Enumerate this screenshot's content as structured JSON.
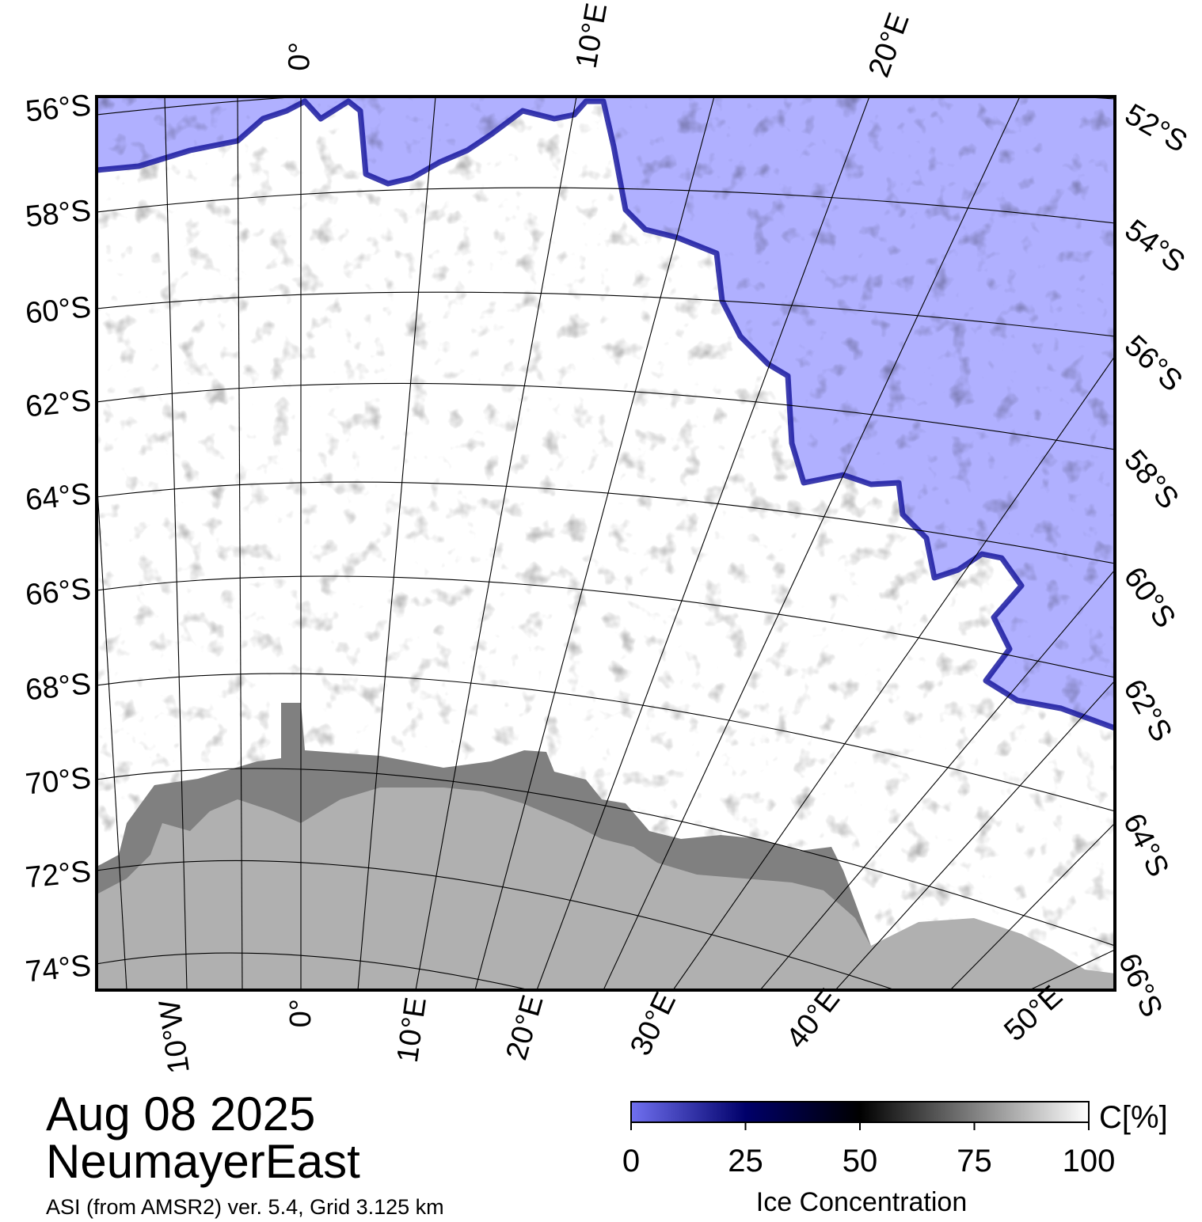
{
  "title": {
    "date": "Aug 08 2025",
    "region": "NeumayerEast",
    "credits": "ASI (from AMSR2) ver. 5.4,  Grid 3.125 km"
  },
  "left_lat_labels": [
    "56°S",
    "58°S",
    "60°S",
    "62°S",
    "64°S",
    "66°S",
    "68°S",
    "70°S",
    "72°S",
    "74°S"
  ],
  "right_lat_labels": [
    "52°S",
    "54°S",
    "56°S",
    "58°S",
    "60°S",
    "62°S",
    "64°S",
    "66°S"
  ],
  "top_lon_labels": [
    "0°",
    "10°E",
    "20°E"
  ],
  "bottom_lon_labels": [
    "10°W",
    "0°",
    "10°E",
    "20°E",
    "30°E",
    "40°E",
    "50°E"
  ],
  "colorbar": {
    "label": "Ice Concentration",
    "unit": "C[%]",
    "ticks": [
      "0",
      "25",
      "50",
      "75",
      "100"
    ],
    "colors": [
      "#7070f0",
      "#00006a",
      "#000000",
      "#808080",
      "#ffffff"
    ]
  },
  "colors": {
    "open_water": "#b0b0ff",
    "land": "#b0b0b0",
    "ice_shelf": "#808080",
    "sea_ice": "#ffffff",
    "ice_edge": "#1a1aa0"
  }
}
